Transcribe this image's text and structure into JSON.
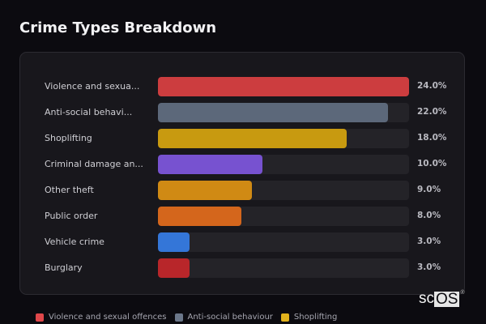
{
  "page": {
    "title": "Crime Types Breakdown"
  },
  "chart_data": {
    "type": "bar",
    "orientation": "horizontal",
    "title": "Crime Types Breakdown",
    "xlabel": "",
    "ylabel": "",
    "categories": [
      "Violence and sexual offences",
      "Anti-social behaviour",
      "Shoplifting",
      "Criminal damage and arson",
      "Other theft",
      "Public order",
      "Vehicle crime",
      "Burglary"
    ],
    "display_labels": [
      "Violence and sexua...",
      "Anti-social behavi...",
      "Shoplifting",
      "Criminal damage an...",
      "Other theft",
      "Public order",
      "Vehicle crime",
      "Burglary"
    ],
    "values": [
      24.0,
      22.0,
      18.0,
      10.0,
      9.0,
      8.0,
      3.0,
      3.0
    ],
    "value_labels": [
      "24.0%",
      "22.0%",
      "18.0%",
      "10.0%",
      "9.0%",
      "8.0%",
      "3.0%",
      "3.0%"
    ],
    "colors": [
      "#cc3d3f",
      "#5c687a",
      "#c89a10",
      "#7752d0",
      "#d08a14",
      "#d4661c",
      "#3476d8",
      "#b8262a"
    ],
    "unit": "%",
    "grid": false,
    "legend_position": "bottom"
  },
  "legend": [
    {
      "label": "Violence and sexual offences",
      "color": "#e0474a"
    },
    {
      "label": "Anti-social behaviour",
      "color": "#6b778a"
    },
    {
      "label": "Shoplifting",
      "color": "#e2b21c"
    }
  ],
  "watermark": {
    "left": "sc",
    "boxed": "OS",
    "mark": "®"
  }
}
